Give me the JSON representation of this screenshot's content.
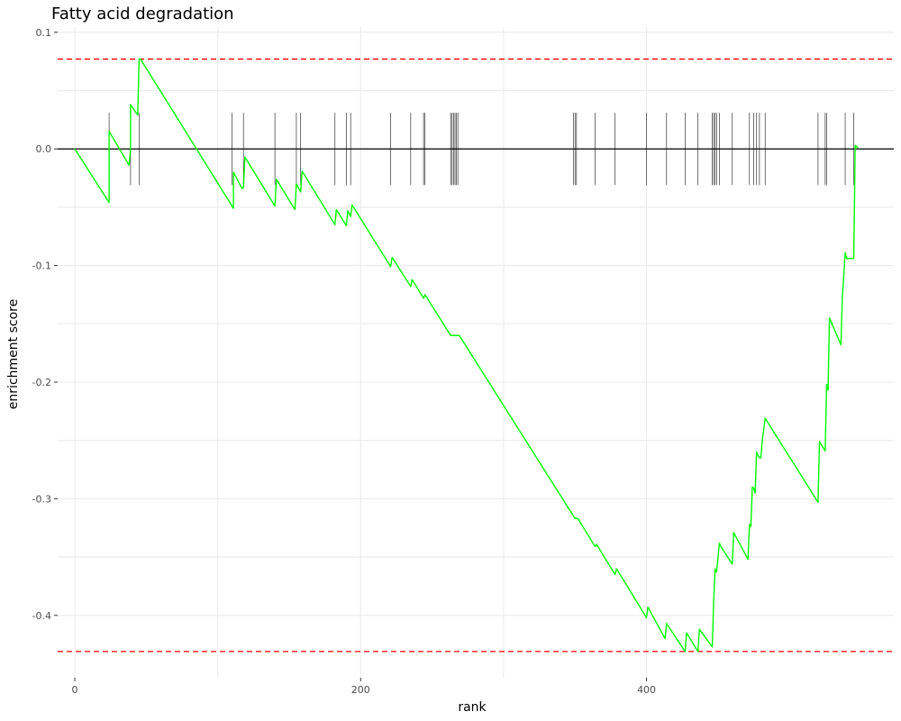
{
  "chart_data": {
    "type": "line",
    "title": "Fatty acid degradation",
    "xlabel": "rank",
    "ylabel": "enrichment score",
    "xlim": [
      -12,
      573
    ],
    "ylim": [
      -0.4535,
      0.1045
    ],
    "x_ticks": [
      {
        "value": 0,
        "label": "0"
      },
      {
        "value": 200,
        "label": "200"
      },
      {
        "value": 400,
        "label": "400"
      }
    ],
    "y_ticks": [
      {
        "value": 0.1,
        "label": "0.1"
      },
      {
        "value": 0.0,
        "label": "0.0"
      },
      {
        "value": -0.1,
        "label": "-0.1"
      },
      {
        "value": -0.2,
        "label": "-0.2"
      },
      {
        "value": -0.3,
        "label": "-0.3"
      },
      {
        "value": -0.4,
        "label": "-0.4"
      }
    ],
    "grid": true,
    "reference_lines": {
      "zero": 0,
      "max_es": 0.077,
      "min_es": -0.431,
      "line_color": "#000000",
      "dashed_color": "#ff0000"
    },
    "series": [
      {
        "color": "#00ff00",
        "x": [
          0,
          24,
          24,
          24,
          38,
          39,
          39,
          44,
          45,
          46,
          111,
          111,
          117,
          118,
          119,
          140,
          141,
          154,
          155,
          158,
          159,
          182,
          183,
          190,
          191,
          193,
          194,
          221,
          222,
          235,
          236,
          244,
          245,
          263,
          269,
          350,
          352,
          364,
          365,
          378,
          379,
          400,
          401,
          413,
          414,
          427,
          428,
          436,
          437,
          446,
          447,
          448,
          449,
          451,
          452,
          460,
          461,
          471,
          472,
          473,
          474,
          475,
          476,
          477,
          479,
          480,
          481,
          483,
          520,
          521,
          525,
          526,
          527,
          528,
          536,
          537,
          539,
          540,
          545,
          546,
          548
        ],
        "y": [
          0.0,
          -0.046,
          -0.032,
          0.015,
          -0.014,
          0.001,
          0.038,
          0.029,
          0.077,
          0.077,
          -0.051,
          -0.02,
          -0.034,
          -0.033,
          -0.007,
          -0.049,
          -0.026,
          -0.052,
          -0.03,
          -0.037,
          -0.019,
          -0.065,
          -0.052,
          -0.066,
          -0.053,
          -0.058,
          -0.048,
          -0.101,
          -0.093,
          -0.118,
          -0.112,
          -0.128,
          -0.125,
          -0.16,
          -0.16,
          -0.317,
          -0.317,
          -0.341,
          -0.339,
          -0.365,
          -0.36,
          -0.402,
          -0.393,
          -0.42,
          -0.407,
          -0.431,
          -0.415,
          -0.431,
          -0.412,
          -0.427,
          -0.387,
          -0.36,
          -0.363,
          -0.338,
          -0.341,
          -0.356,
          -0.329,
          -0.352,
          -0.322,
          -0.324,
          -0.29,
          -0.291,
          -0.295,
          -0.26,
          -0.265,
          -0.265,
          -0.25,
          -0.231,
          -0.303,
          -0.251,
          -0.259,
          -0.202,
          -0.207,
          -0.145,
          -0.168,
          -0.128,
          -0.089,
          -0.094,
          -0.094,
          0.003,
          0.001
        ]
      }
    ],
    "hit_ranks": [
      24,
      39,
      45,
      110,
      118,
      140,
      155,
      158,
      182,
      190,
      193,
      221,
      235,
      244,
      245,
      263,
      264,
      265,
      266,
      267,
      268,
      349,
      350,
      351,
      364,
      378,
      400,
      414,
      427,
      436,
      446,
      447,
      448,
      449,
      451,
      460,
      472,
      475,
      477,
      479,
      483,
      520,
      525,
      526,
      539,
      545
    ]
  }
}
